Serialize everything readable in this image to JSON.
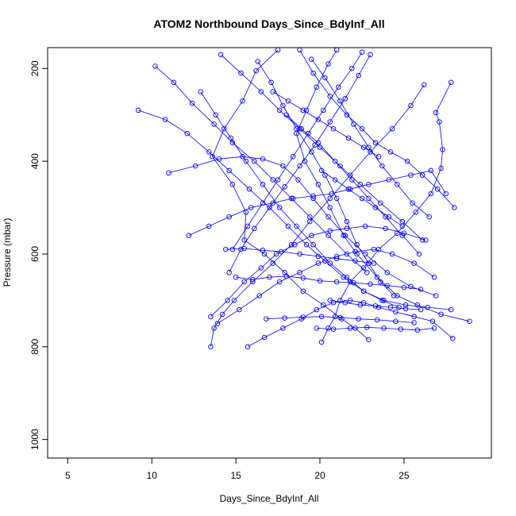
{
  "chart_data": {
    "type": "scatter",
    "title": "ATOM2 Northbound Days_Since_BdyInf_All",
    "xlabel": "Days_Since_BdyInf_All",
    "ylabel": "Pressure (mbar)",
    "xlim": [
      3.8,
      30.2
    ],
    "ylim": [
      1040,
      155
    ],
    "y_reversed": true,
    "x_ticks": [
      5,
      10,
      15,
      20,
      25
    ],
    "y_ticks": [
      200,
      400,
      600,
      800,
      1000
    ],
    "grid": false,
    "legend": "none",
    "color": "#0000ff",
    "marker": "open-circle",
    "connect_points": true,
    "series": [
      {
        "x": [
          17.5,
          16.2,
          15.4,
          14.3,
          13.6,
          14.8,
          15.6,
          15.5,
          16.7,
          17.9,
          19.0,
          20.2,
          21.3,
          22.1,
          22.9
        ],
        "y": [
          160,
          205,
          270,
          330,
          390,
          450,
          510,
          570,
          600,
          640,
          680,
          710,
          740,
          760,
          785
        ]
      },
      {
        "x": [
          21.0,
          20.5,
          19.8,
          19.2,
          18.6,
          19.1,
          19.9,
          20.6,
          21.4,
          22.2,
          23.4,
          24.6,
          25.8,
          27.2,
          28.9
        ],
        "y": [
          160,
          190,
          240,
          290,
          340,
          400,
          450,
          500,
          560,
          600,
          650,
          690,
          710,
          730,
          745
        ]
      },
      {
        "x": [
          27.8,
          26.9,
          27.1,
          27.3,
          27.2,
          26.6,
          25.7,
          24.6,
          23.5,
          22.6,
          21.8,
          21.2,
          20.9,
          20.5,
          20.1
        ],
        "y": [
          230,
          295,
          315,
          375,
          415,
          470,
          510,
          555,
          590,
          630,
          660,
          700,
          735,
          760,
          790
        ]
      },
      {
        "x": [
          26.2,
          25.4,
          24.3,
          23.0,
          21.8,
          20.6,
          19.4,
          18.3,
          17.2,
          16.0,
          14.9,
          14.2,
          13.7,
          13.5
        ],
        "y": [
          235,
          280,
          330,
          380,
          430,
          480,
          530,
          580,
          620,
          660,
          700,
          730,
          760,
          800
        ]
      },
      {
        "x": [
          9.2,
          10.8,
          12.1,
          13.4,
          14.6,
          15.8,
          17.0,
          18.1,
          19.2,
          20.3,
          21.4,
          22.6,
          23.8,
          25.1,
          26.4,
          27.8
        ],
        "y": [
          290,
          310,
          340,
          380,
          420,
          460,
          500,
          540,
          580,
          615,
          650,
          680,
          700,
          710,
          715,
          720
        ]
      },
      {
        "x": [
          11.0,
          12.6,
          14.0,
          15.4,
          16.6,
          17.8,
          18.7,
          19.6,
          20.5,
          21.5,
          22.7,
          24.0,
          25.4,
          26.9
        ],
        "y": [
          425,
          410,
          395,
          390,
          395,
          410,
          440,
          480,
          520,
          560,
          600,
          640,
          670,
          690
        ]
      },
      {
        "x": [
          12.2,
          13.4,
          14.6,
          15.9,
          17.2,
          18.4,
          19.6,
          20.7,
          21.8,
          22.9,
          24.1,
          25.4,
          26.6,
          27.5
        ],
        "y": [
          560,
          540,
          520,
          500,
          490,
          480,
          475,
          470,
          460,
          450,
          440,
          430,
          420,
          470
        ]
      },
      {
        "x": [
          13.5,
          14.5,
          15.5,
          16.5,
          17.4,
          18.5,
          19.5,
          20.6,
          21.6,
          22.7,
          23.9,
          25.0,
          26.3
        ],
        "y": [
          735,
          700,
          660,
          630,
          600,
          580,
          560,
          550,
          545,
          540,
          545,
          555,
          570
        ]
      },
      {
        "x": [
          13.9,
          15.2,
          16.4,
          17.6,
          18.8,
          19.9,
          21.0,
          22.1,
          23.2,
          24.3,
          25.6,
          26.8
        ],
        "y": [
          750,
          720,
          690,
          660,
          640,
          620,
          605,
          595,
          590,
          600,
          620,
          650
        ]
      },
      {
        "x": [
          15.7,
          16.7,
          17.8,
          18.9,
          19.8,
          20.8,
          21.8,
          22.6,
          23.5,
          24.5,
          25.6,
          26.7,
          27.9
        ],
        "y": [
          800,
          780,
          760,
          740,
          720,
          705,
          700,
          705,
          715,
          725,
          735,
          745,
          782
        ]
      },
      {
        "x": [
          18.8,
          19.6,
          20.6,
          21.6,
          22.5,
          23.3,
          24.2,
          25.2,
          26.1,
          27.0,
          28.0
        ],
        "y": [
          160,
          210,
          260,
          300,
          330,
          360,
          380,
          400,
          430,
          460,
          500
        ]
      },
      {
        "x": [
          10.2,
          11.3,
          12.4,
          13.7,
          14.8,
          16.1,
          17.2,
          18.3,
          19.4,
          20.5,
          21.6,
          22.8
        ],
        "y": [
          195,
          230,
          275,
          320,
          360,
          400,
          440,
          480,
          520,
          560,
          600,
          640
        ]
      },
      {
        "x": [
          22.5,
          21.9,
          21.1,
          20.2,
          19.3,
          18.4,
          17.5,
          16.6,
          15.7,
          14.8
        ],
        "y": [
          165,
          200,
          240,
          290,
          340,
          390,
          440,
          490,
          540,
          590
        ]
      },
      {
        "x": [
          14.1,
          15.3,
          16.5,
          17.6,
          18.8,
          20.0,
          21.2,
          22.4,
          23.6,
          24.9,
          26.1
        ],
        "y": [
          170,
          210,
          250,
          290,
          330,
          370,
          410,
          450,
          490,
          530,
          570
        ]
      },
      {
        "x": [
          16.3,
          17.1,
          17.8,
          18.6,
          19.5,
          20.3,
          21.0,
          21.6,
          22.2,
          22.9,
          23.6,
          24.4
        ],
        "y": [
          185,
          230,
          280,
          330,
          380,
          430,
          480,
          530,
          580,
          620,
          660,
          690
        ]
      },
      {
        "x": [
          12.9,
          13.8,
          14.7,
          15.6,
          16.6,
          17.6,
          18.6,
          19.6,
          20.6,
          21.6,
          22.6,
          23.7,
          24.7
        ],
        "y": [
          250,
          300,
          350,
          400,
          450,
          500,
          540,
          580,
          620,
          650,
          680,
          700,
          715
        ]
      },
      {
        "x": [
          19.5,
          20.3,
          21.2,
          22.0,
          22.9,
          23.7,
          24.6,
          25.5,
          26.5
        ],
        "y": [
          180,
          220,
          270,
          320,
          370,
          410,
          450,
          490,
          520
        ]
      },
      {
        "x": [
          23.0,
          22.3,
          21.5,
          20.6,
          19.7,
          18.8,
          17.9,
          17.0,
          16.1,
          15.3,
          14.6
        ],
        "y": [
          170,
          215,
          265,
          315,
          365,
          410,
          455,
          500,
          545,
          590,
          640
        ]
      },
      {
        "x": [
          18.0,
          18.9,
          19.9,
          20.9,
          21.9,
          22.9,
          23.9,
          24.9,
          25.9
        ],
        "y": [
          300,
          330,
          360,
          400,
          440,
          480,
          520,
          560,
          600
        ]
      },
      {
        "x": [
          15.0,
          16.0,
          17.0,
          18.0,
          19.0,
          20.0,
          21.0,
          22.0,
          23.0,
          24.0,
          25.0,
          26.0
        ],
        "y": [
          650,
          655,
          650,
          648,
          652,
          658,
          660,
          662,
          665,
          668,
          672,
          676
        ]
      },
      {
        "x": [
          16.8,
          17.9,
          19.0,
          20.1,
          21.2,
          22.3,
          23.4,
          24.5,
          25.6
        ],
        "y": [
          740,
          738,
          736,
          735,
          737,
          740,
          742,
          745,
          748
        ]
      },
      {
        "x": [
          19.8,
          20.8,
          21.8,
          22.8,
          23.8,
          24.8,
          25.8,
          26.8
        ],
        "y": [
          760,
          762,
          760,
          758,
          760,
          762,
          764,
          760
        ]
      },
      {
        "x": [
          20.6,
          21.5,
          22.4,
          23.3,
          24.2,
          25.1,
          26.0
        ],
        "y": [
          700,
          705,
          710,
          712,
          715,
          718,
          720
        ]
      },
      {
        "x": [
          14.4,
          15.5,
          16.6,
          17.7,
          18.8,
          19.9,
          21.0,
          22.1,
          23.2
        ],
        "y": [
          590,
          588,
          592,
          595,
          600,
          605,
          610,
          615,
          620
        ]
      },
      {
        "x": [
          17.2,
          18.1,
          19.0,
          19.9,
          20.8,
          21.7,
          22.6,
          23.5
        ],
        "y": [
          250,
          270,
          290,
          310,
          330,
          350,
          370,
          390
        ]
      },
      {
        "x": [
          20.1,
          20.9,
          21.7,
          22.5,
          23.3,
          24.1,
          24.9
        ],
        "y": [
          420,
          440,
          460,
          480,
          500,
          520,
          540
        ]
      }
    ]
  }
}
